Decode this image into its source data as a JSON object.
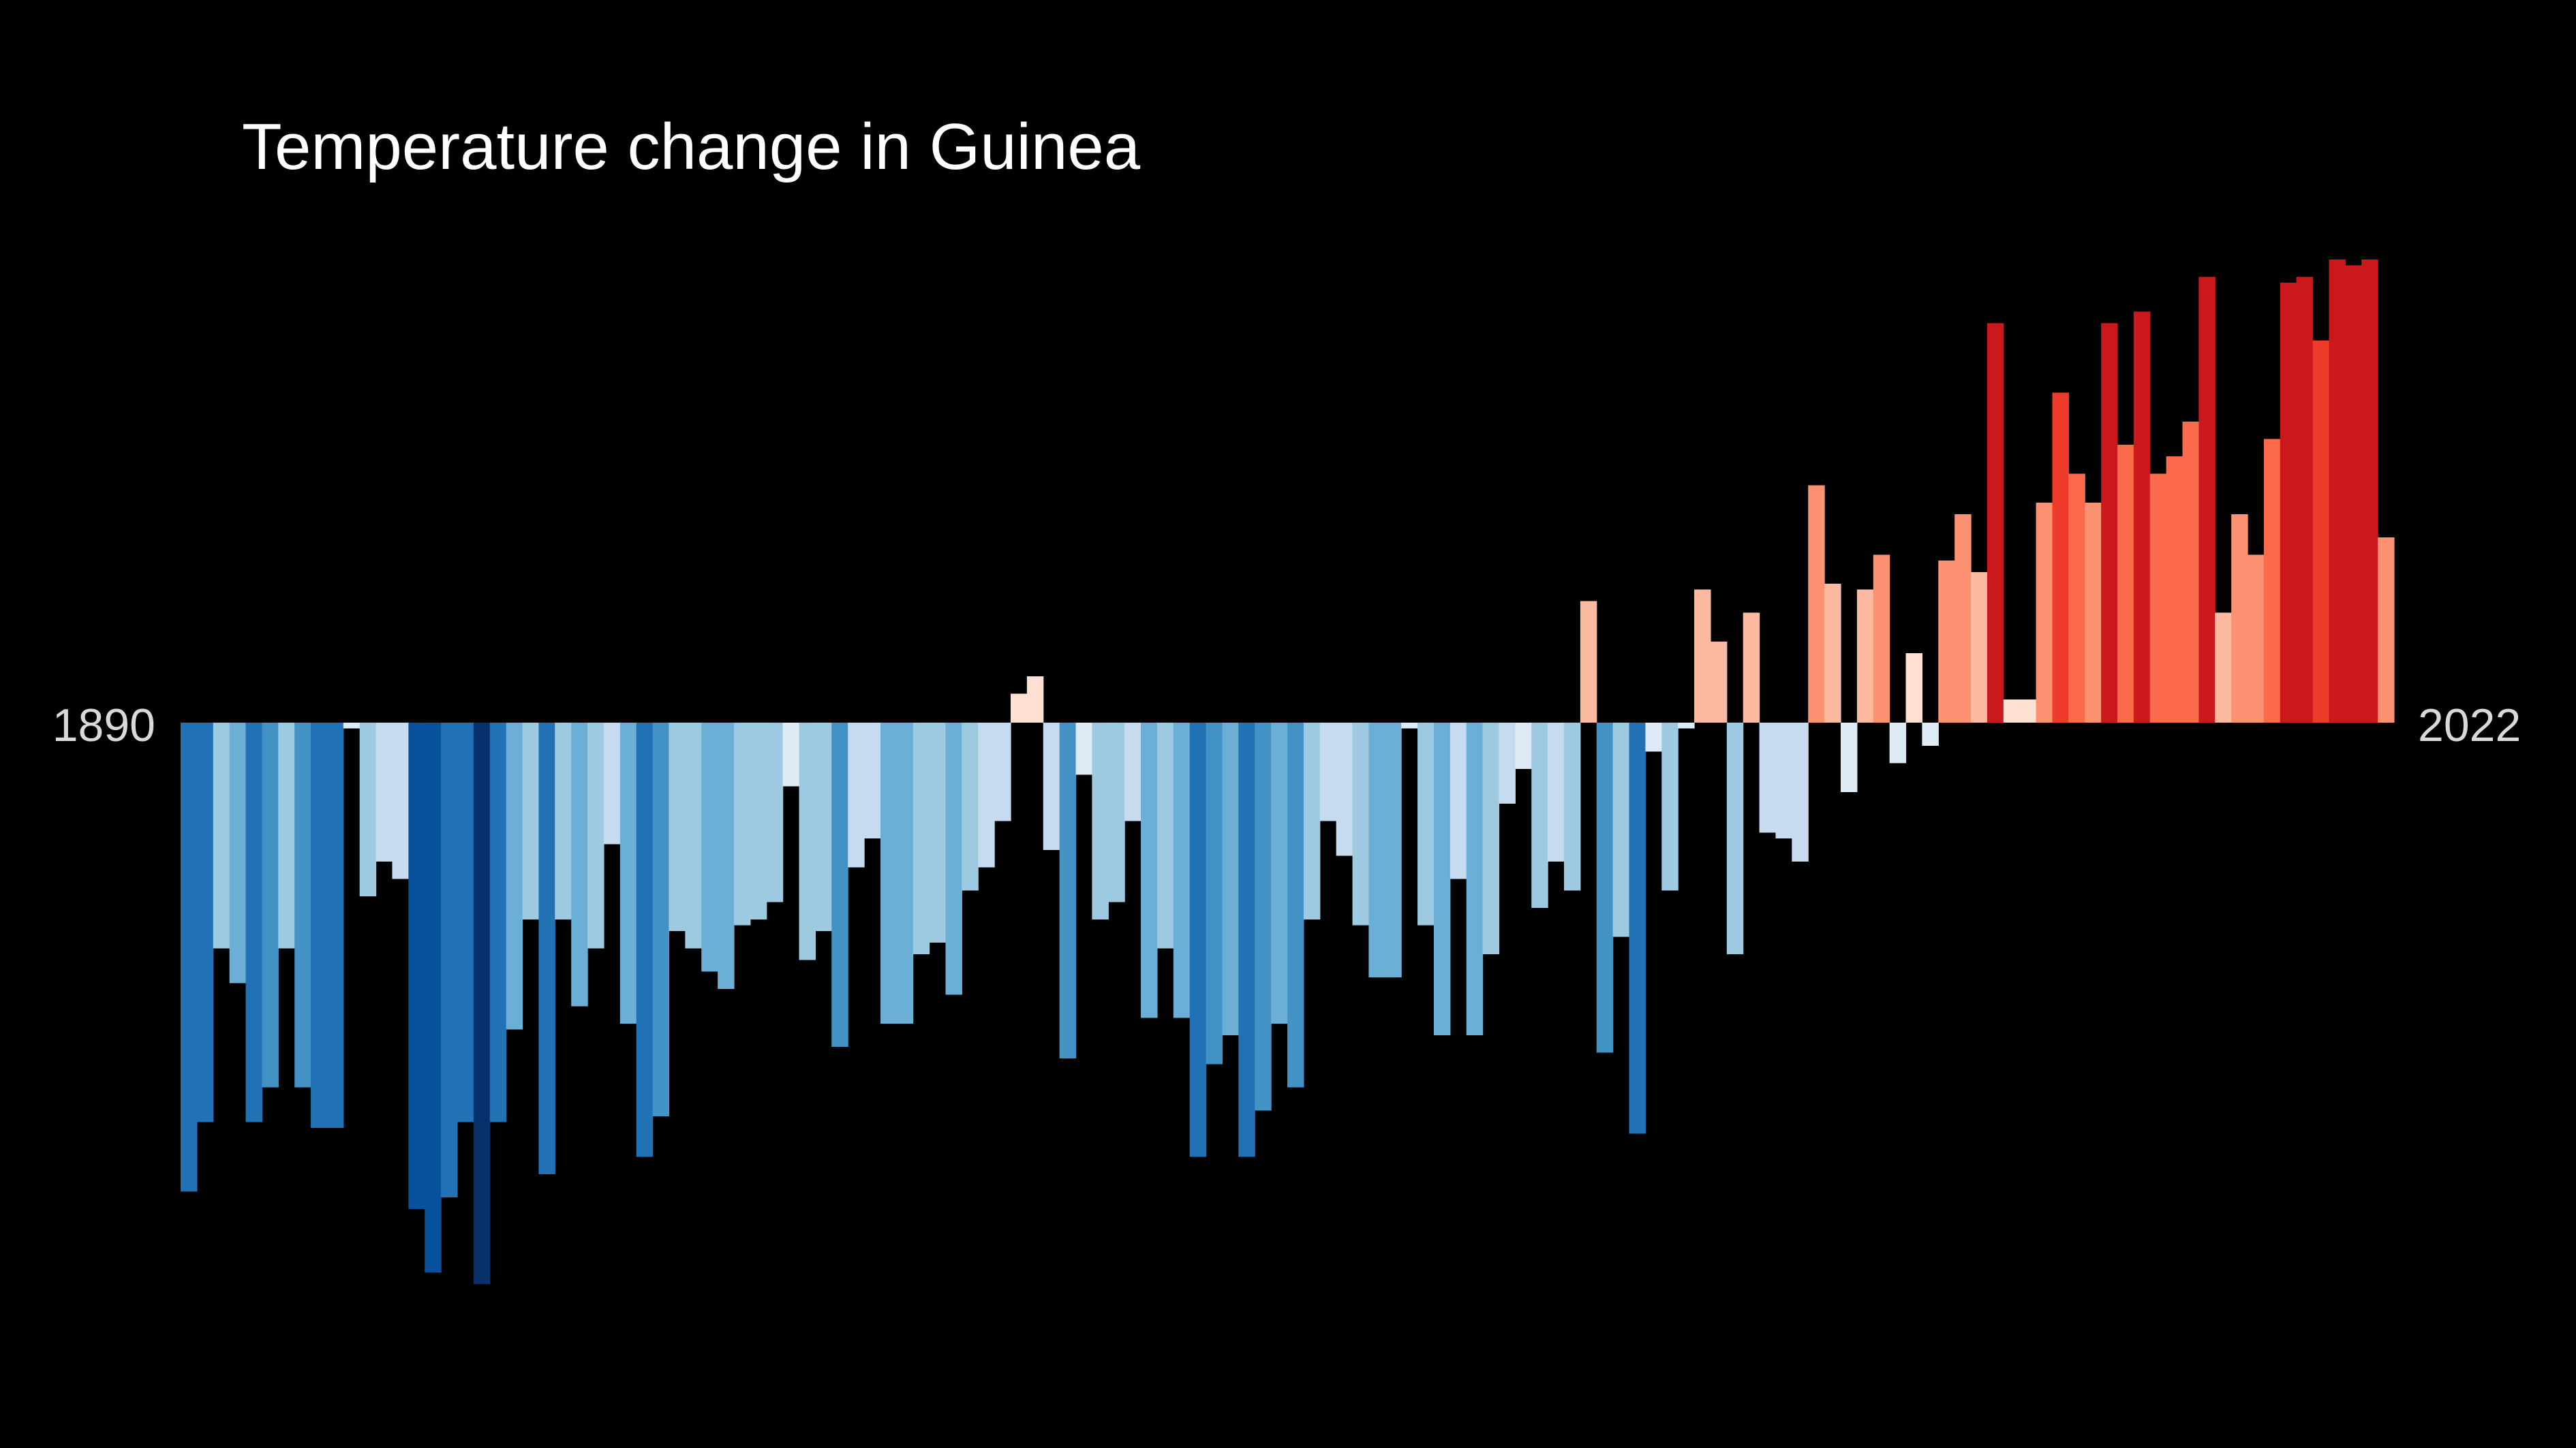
{
  "chart_data": {
    "type": "bar",
    "title": "Temperature change in Guinea",
    "x_start_label": "1890",
    "x_end_label": "2022",
    "ylim": [
      -1.1,
      1.1
    ],
    "values": [
      -0.81,
      -0.69,
      -0.39,
      -0.45,
      -0.69,
      -0.63,
      -0.39,
      -0.63,
      -0.7,
      -0.7,
      -0.01,
      -0.3,
      -0.24,
      -0.27,
      -0.84,
      -0.95,
      -0.82,
      -0.69,
      -0.97,
      -0.69,
      -0.53,
      -0.34,
      -0.78,
      -0.34,
      -0.49,
      -0.39,
      -0.21,
      -0.52,
      -0.75,
      -0.68,
      -0.36,
      -0.39,
      -0.43,
      -0.46,
      -0.35,
      -0.34,
      -0.31,
      -0.11,
      -0.41,
      -0.36,
      -0.56,
      -0.25,
      -0.2,
      -0.52,
      -0.52,
      -0.4,
      -0.38,
      -0.47,
      -0.29,
      -0.25,
      -0.17,
      0.05,
      0.08,
      -0.22,
      -0.58,
      -0.09,
      -0.34,
      -0.31,
      -0.17,
      -0.51,
      -0.39,
      -0.51,
      -0.75,
      -0.59,
      -0.54,
      -0.75,
      -0.67,
      -0.52,
      -0.63,
      -0.34,
      -0.17,
      -0.23,
      -0.35,
      -0.44,
      -0.44,
      -0.01,
      -0.35,
      -0.54,
      -0.27,
      -0.54,
      -0.4,
      -0.14,
      -0.08,
      -0.32,
      -0.24,
      -0.29,
      0.21,
      -0.57,
      -0.37,
      -0.71,
      -0.05,
      -0.29,
      -0.01,
      0.23,
      0.14,
      -0.4,
      0.19,
      -0.19,
      -0.2,
      -0.24,
      0.41,
      0.24,
      -0.12,
      0.23,
      0.29,
      -0.07,
      0.12,
      -0.04,
      0.28,
      0.36,
      0.26,
      0.69,
      0.04,
      0.04,
      0.38,
      0.57,
      0.43,
      0.38,
      0.69,
      0.48,
      0.71,
      0.43,
      0.46,
      0.52,
      0.77,
      0.19,
      0.36,
      0.29,
      0.49,
      0.76,
      0.77,
      0.66,
      0.8,
      0.79,
      0.8,
      0.32
    ]
  },
  "palette": {
    "background": "#000000",
    "stops": [
      "#08306b",
      "#08519c",
      "#2171b5",
      "#4292c6",
      "#6baed6",
      "#9ecae1",
      "#c6dbef",
      "#deebf7",
      "#fee0d2",
      "#fcbba1",
      "#fc9272",
      "#fb6a4a",
      "#ef3b2c",
      "#cb181d",
      "#a50f15",
      "#67000d"
    ]
  }
}
